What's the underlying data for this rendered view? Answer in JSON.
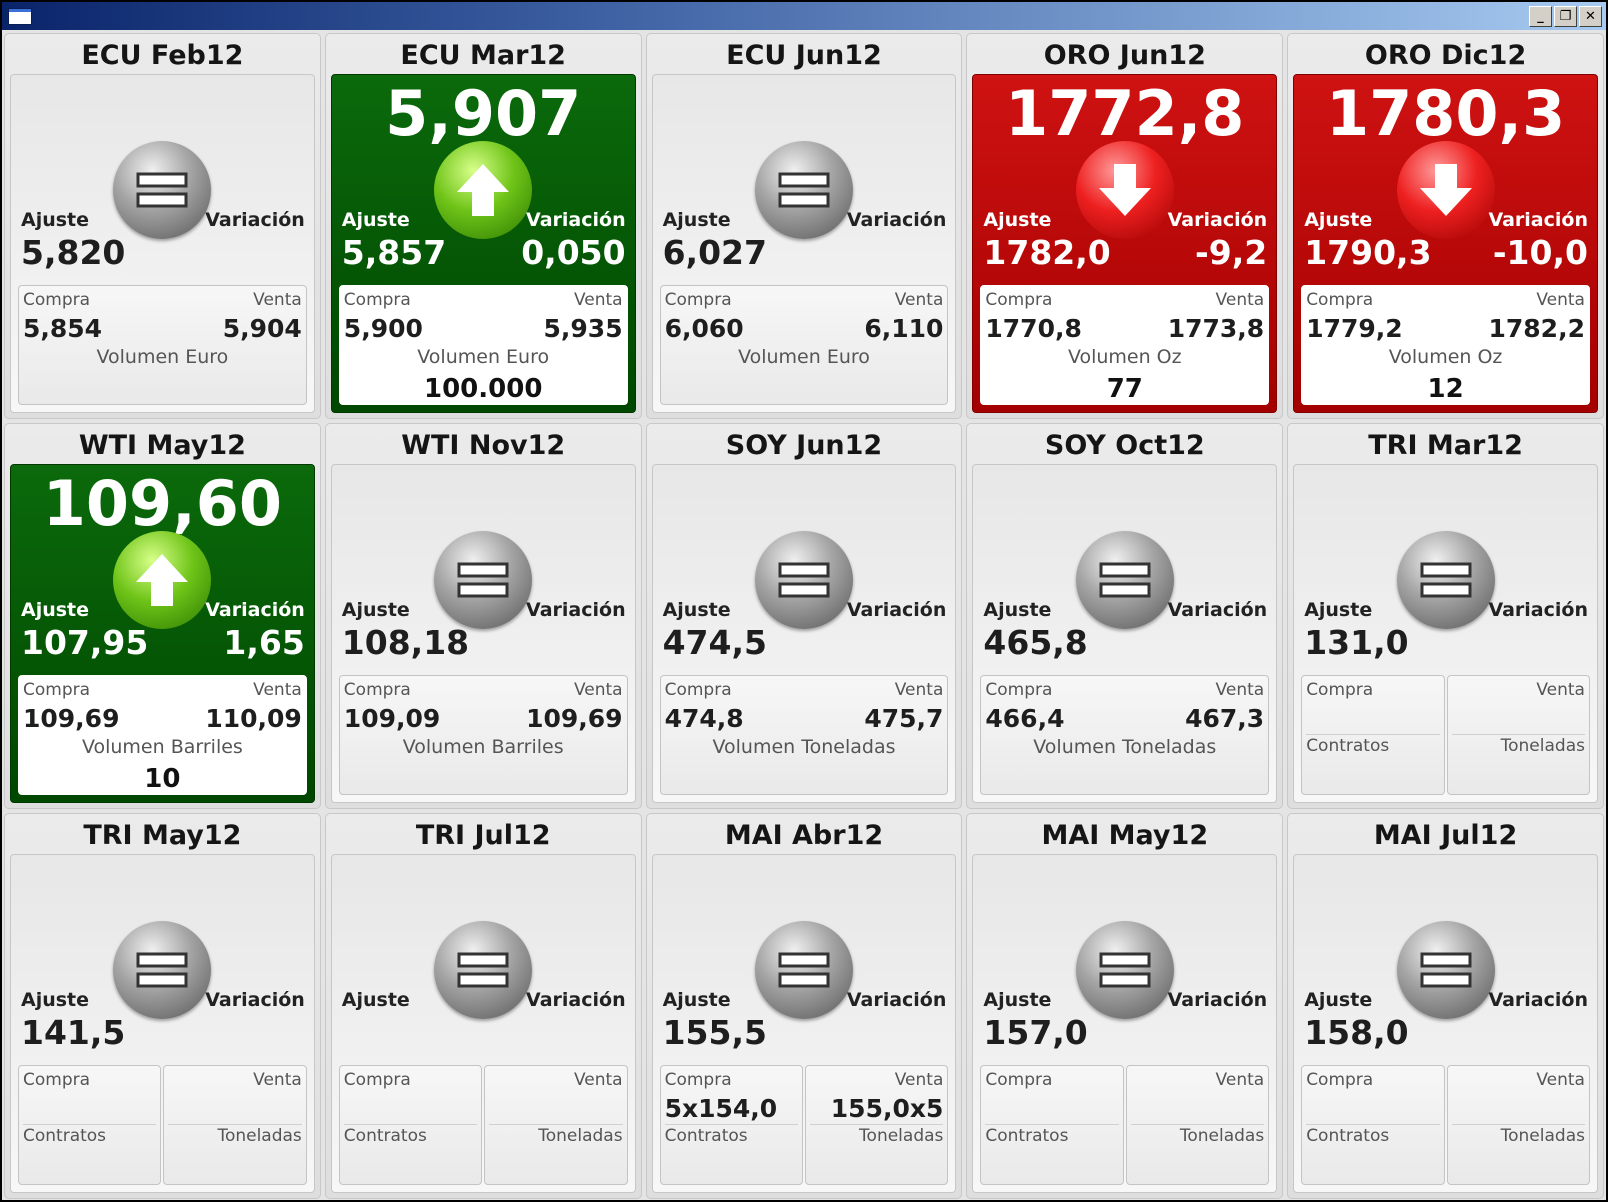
{
  "window": {
    "controls": {
      "minimize": "_",
      "restore": "❐",
      "close": "✕"
    }
  },
  "labels": {
    "ajuste": "Ajuste",
    "variacion": "Variación",
    "compra": "Compra",
    "venta": "Venta",
    "contratos": "Contratos",
    "toneladas": "Toneladas"
  },
  "colors": {
    "up": "#006000",
    "down": "#c00000",
    "neutral": "#8c8c8c"
  },
  "tiles": [
    {
      "title": "ECU Feb12",
      "state": "neutral",
      "icon": "equals-icon",
      "price": "",
      "ajuste": "5,820",
      "variacion": "",
      "compra": "5,854",
      "venta": "5,904",
      "volumen_label": "Volumen Euro",
      "volumen": ""
    },
    {
      "title": "ECU Mar12",
      "state": "up",
      "icon": "arrow-up-icon",
      "price": "5,907",
      "ajuste": "5,857",
      "variacion": "0,050",
      "compra": "5,900",
      "venta": "5,935",
      "volumen_label": "Volumen Euro",
      "volumen": "100.000"
    },
    {
      "title": "ECU Jun12",
      "state": "neutral",
      "icon": "equals-icon",
      "price": "",
      "ajuste": "6,027",
      "variacion": "",
      "compra": "6,060",
      "venta": "6,110",
      "volumen_label": "Volumen Euro",
      "volumen": ""
    },
    {
      "title": "ORO Jun12",
      "state": "down",
      "icon": "arrow-down-icon",
      "price": "1772,8",
      "ajuste": "1782,0",
      "variacion": "-9,2",
      "compra": "1770,8",
      "venta": "1773,8",
      "volumen_label": "Volumen Oz",
      "volumen": "77"
    },
    {
      "title": "ORO Dic12",
      "state": "down",
      "icon": "arrow-down-icon",
      "price": "1780,3",
      "ajuste": "1790,3",
      "variacion": "-10,0",
      "compra": "1779,2",
      "venta": "1782,2",
      "volumen_label": "Volumen Oz",
      "volumen": "12"
    },
    {
      "title": "WTI May12",
      "state": "up",
      "icon": "arrow-up-icon",
      "price": "109,60",
      "ajuste": "107,95",
      "variacion": "1,65",
      "compra": "109,69",
      "venta": "110,09",
      "volumen_label": "Volumen Barriles",
      "volumen": "10"
    },
    {
      "title": "WTI Nov12",
      "state": "neutral",
      "icon": "equals-icon",
      "price": "",
      "ajuste": "108,18",
      "variacion": "",
      "compra": "109,09",
      "venta": "109,69",
      "volumen_label": "Volumen Barriles",
      "volumen": ""
    },
    {
      "title": "SOY Jun12",
      "state": "neutral",
      "icon": "equals-icon",
      "price": "",
      "ajuste": "474,5",
      "variacion": "",
      "compra": "474,8",
      "venta": "475,7",
      "volumen_label": "Volumen Toneladas",
      "volumen": ""
    },
    {
      "title": "SOY Oct12",
      "state": "neutral",
      "icon": "equals-icon",
      "price": "",
      "ajuste": "465,8",
      "variacion": "",
      "compra": "466,4",
      "venta": "467,3",
      "volumen_label": "Volumen Toneladas",
      "volumen": ""
    },
    {
      "title": "TRI Mar12",
      "state": "neutral",
      "icon": "equals-icon",
      "split": true,
      "price": "",
      "ajuste": "131,0",
      "variacion": "",
      "compra": "",
      "venta": ""
    },
    {
      "title": "TRI May12",
      "state": "neutral",
      "icon": "equals-icon",
      "split": true,
      "price": "",
      "ajuste": "141,5",
      "variacion": "",
      "compra": "",
      "venta": ""
    },
    {
      "title": "TRI Jul12",
      "state": "neutral",
      "icon": "equals-icon",
      "split": true,
      "price": "",
      "ajuste": "",
      "variacion": "",
      "compra": "",
      "venta": ""
    },
    {
      "title": "MAI Abr12",
      "state": "neutral",
      "icon": "equals-icon",
      "split": true,
      "price": "",
      "ajuste": "155,5",
      "variacion": "",
      "compra": "5x154,0",
      "venta": "155,0x5"
    },
    {
      "title": "MAI May12",
      "state": "neutral",
      "icon": "equals-icon",
      "split": true,
      "price": "",
      "ajuste": "157,0",
      "variacion": "",
      "compra": "",
      "venta": ""
    },
    {
      "title": "MAI Jul12",
      "state": "neutral",
      "icon": "equals-icon",
      "split": true,
      "price": "",
      "ajuste": "158,0",
      "variacion": "",
      "compra": "",
      "venta": ""
    }
  ]
}
